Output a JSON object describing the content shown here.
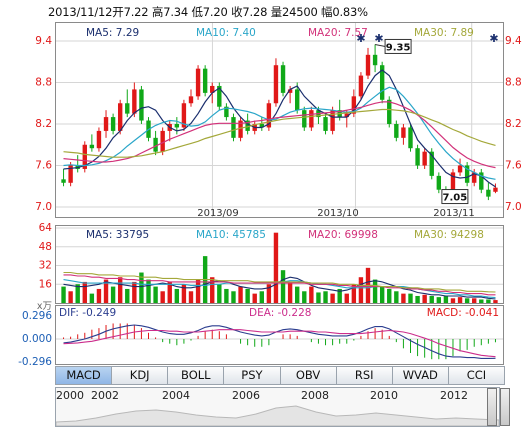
{
  "header": {
    "date": "2013/11/12",
    "open_label": "开",
    "open": "7.22",
    "high_label": "高",
    "high": "7.34",
    "low_label": "低",
    "low": "7.20",
    "close_label": "收",
    "close": "7.28",
    "volume_label": "量",
    "volume": "24500",
    "change_label": "幅",
    "change": "0.83%"
  },
  "price_panel": {
    "legend": [
      {
        "label": "MA5: 7.29",
        "color": "#1b2f6e"
      },
      {
        "label": "MA10: 7.40",
        "color": "#2aa6c9"
      },
      {
        "label": "MA20: 7.57",
        "color": "#d2327a"
      },
      {
        "label": "MA30: 7.89",
        "color": "#a4a83a"
      }
    ],
    "y_ticks": [
      "9.4",
      "8.8",
      "8.2",
      "7.6",
      "7.0"
    ],
    "x_ticks": [
      "2013/09",
      "2013/10",
      "2013/11"
    ],
    "max_label": "9.35",
    "min_label": "7.05"
  },
  "volume_panel": {
    "legend": [
      {
        "label": "MA5: 33795",
        "color": "#1b2f6e"
      },
      {
        "label": "MA10: 45785",
        "color": "#2aa6c9"
      },
      {
        "label": "MA20: 69998",
        "color": "#d2327a"
      },
      {
        "label": "MA30: 94298",
        "color": "#a4a83a"
      }
    ],
    "y_ticks": [
      "64",
      "48",
      "32",
      "16"
    ],
    "unit": "x万"
  },
  "macd_panel": {
    "dif_label": "DIF: -0.249",
    "dea_label": "DEA: -0.228",
    "macd_label": "MACD: -0.041",
    "y_ticks": [
      "0.296",
      "0.000",
      "-0.296"
    ]
  },
  "tabs": [
    "MACD",
    "KDJ",
    "BOLL",
    "PSY",
    "OBV",
    "RSI",
    "WVAD",
    "CCI"
  ],
  "active_tab": "MACD",
  "timeline_years": [
    "2000",
    "2002",
    "2004",
    "2006",
    "2008",
    "2010",
    "2012"
  ],
  "colors": {
    "up": "#e01818",
    "down": "#10a818",
    "grid": "#d6d6d6",
    "dif": "#2b3d8f",
    "dea": "#cc2d8c"
  },
  "chart_data": [
    {
      "type": "candlestick",
      "title": "",
      "ylim": [
        7.0,
        9.4
      ],
      "x_ticks": [
        "2013/09",
        "2013/10",
        "2013/11"
      ],
      "candles": [
        [
          7.4,
          7.55,
          7.3,
          7.35
        ],
        [
          7.35,
          7.65,
          7.3,
          7.6
        ],
        [
          7.6,
          7.75,
          7.5,
          7.55
        ],
        [
          7.55,
          7.95,
          7.5,
          7.9
        ],
        [
          7.9,
          8.05,
          7.8,
          7.85
        ],
        [
          7.85,
          8.15,
          7.8,
          8.1
        ],
        [
          8.1,
          8.4,
          8.0,
          8.3
        ],
        [
          8.3,
          8.35,
          8.05,
          8.1
        ],
        [
          8.1,
          8.55,
          8.05,
          8.5
        ],
        [
          8.5,
          8.7,
          8.3,
          8.35
        ],
        [
          8.35,
          8.8,
          8.3,
          8.7
        ],
        [
          8.7,
          8.75,
          8.2,
          8.25
        ],
        [
          8.25,
          8.3,
          7.95,
          8.0
        ],
        [
          8.0,
          8.1,
          7.75,
          7.8
        ],
        [
          7.8,
          8.15,
          7.75,
          8.1
        ],
        [
          8.1,
          8.25,
          7.95,
          8.2
        ],
        [
          8.2,
          8.3,
          8.05,
          8.15
        ],
        [
          8.15,
          8.55,
          8.1,
          8.5
        ],
        [
          8.5,
          8.7,
          8.45,
          8.6
        ],
        [
          8.6,
          9.05,
          8.55,
          9.0
        ],
        [
          9.0,
          9.05,
          8.6,
          8.65
        ],
        [
          8.65,
          8.8,
          8.5,
          8.75
        ],
        [
          8.75,
          8.8,
          8.4,
          8.45
        ],
        [
          8.45,
          8.5,
          8.25,
          8.3
        ],
        [
          8.3,
          8.35,
          7.95,
          8.0
        ],
        [
          8.0,
          8.3,
          7.95,
          8.25
        ],
        [
          8.25,
          8.35,
          8.05,
          8.1
        ],
        [
          8.1,
          8.25,
          8.05,
          8.2
        ],
        [
          8.2,
          8.3,
          8.1,
          8.15
        ],
        [
          8.15,
          8.55,
          8.1,
          8.5
        ],
        [
          8.5,
          9.15,
          8.45,
          9.05
        ],
        [
          9.05,
          9.1,
          8.6,
          8.65
        ],
        [
          8.65,
          8.75,
          8.5,
          8.7
        ],
        [
          8.7,
          8.8,
          8.35,
          8.4
        ],
        [
          8.4,
          8.45,
          8.1,
          8.15
        ],
        [
          8.15,
          8.45,
          8.1,
          8.4
        ],
        [
          8.4,
          8.45,
          8.2,
          8.3
        ],
        [
          8.3,
          8.35,
          8.05,
          8.1
        ],
        [
          8.1,
          8.45,
          8.05,
          8.4
        ],
        [
          8.4,
          8.55,
          8.25,
          8.3
        ],
        [
          8.3,
          8.4,
          8.15,
          8.35
        ],
        [
          8.35,
          8.7,
          8.3,
          8.6
        ],
        [
          8.6,
          8.95,
          8.55,
          8.9
        ],
        [
          8.9,
          9.3,
          8.85,
          9.2
        ],
        [
          9.2,
          9.35,
          8.95,
          9.05
        ],
        [
          9.05,
          9.1,
          8.5,
          8.55
        ],
        [
          8.55,
          8.6,
          8.15,
          8.2
        ],
        [
          8.2,
          8.25,
          7.95,
          8.0
        ],
        [
          8.0,
          8.2,
          7.9,
          8.15
        ],
        [
          8.15,
          8.2,
          7.8,
          7.85
        ],
        [
          7.85,
          7.9,
          7.55,
          7.6
        ],
        [
          7.6,
          7.85,
          7.55,
          7.8
        ],
        [
          7.8,
          7.85,
          7.4,
          7.45
        ],
        [
          7.45,
          7.5,
          7.2,
          7.25
        ],
        [
          7.25,
          7.3,
          7.05,
          7.15
        ],
        [
          7.15,
          7.55,
          7.1,
          7.5
        ],
        [
          7.5,
          7.7,
          7.45,
          7.6
        ],
        [
          7.6,
          7.65,
          7.3,
          7.35
        ],
        [
          7.35,
          7.55,
          7.3,
          7.5
        ],
        [
          7.5,
          7.55,
          7.2,
          7.25
        ],
        [
          7.25,
          7.35,
          7.1,
          7.15
        ],
        [
          7.22,
          7.34,
          7.2,
          7.28
        ]
      ],
      "series": [
        {
          "name": "MA5",
          "values": [
            7.55,
            7.56,
            7.57,
            7.6,
            7.65,
            7.73,
            7.85,
            8.0,
            8.1,
            8.25,
            8.36,
            8.43,
            8.45,
            8.4,
            8.25,
            8.15,
            8.1,
            8.12,
            8.21,
            8.35,
            8.52,
            8.65,
            8.72,
            8.6,
            8.43,
            8.3,
            8.2,
            8.15,
            8.15,
            8.2,
            8.35,
            8.55,
            8.7,
            8.75,
            8.6,
            8.5,
            8.4,
            8.35,
            8.3,
            8.3,
            8.3,
            8.4,
            8.55,
            8.75,
            8.9,
            8.98,
            8.9,
            8.7,
            8.45,
            8.2,
            7.97,
            7.85,
            7.75,
            7.62,
            7.5,
            7.44,
            7.42,
            7.43,
            7.48,
            7.45,
            7.36,
            7.29
          ]
        },
        {
          "name": "MA10",
          "values": [
            7.6,
            7.61,
            7.6,
            7.6,
            7.61,
            7.63,
            7.67,
            7.72,
            7.79,
            7.88,
            7.96,
            8.04,
            8.12,
            8.18,
            8.22,
            8.25,
            8.24,
            8.2,
            8.17,
            8.18,
            8.23,
            8.32,
            8.4,
            8.43,
            8.42,
            8.4,
            8.38,
            8.35,
            8.3,
            8.26,
            8.27,
            8.32,
            8.37,
            8.4,
            8.42,
            8.43,
            8.42,
            8.41,
            8.4,
            8.38,
            8.37,
            8.38,
            8.43,
            8.52,
            8.6,
            8.68,
            8.73,
            8.7,
            8.6,
            8.48,
            8.35,
            8.2,
            8.05,
            7.92,
            7.8,
            7.7,
            7.62,
            7.55,
            7.5,
            7.45,
            7.42,
            7.4
          ]
        },
        {
          "name": "MA20",
          "values": [
            7.7,
            7.69,
            7.68,
            7.67,
            7.66,
            7.65,
            7.65,
            7.66,
            7.68,
            7.7,
            7.73,
            7.78,
            7.83,
            7.88,
            7.93,
            7.98,
            8.02,
            8.06,
            8.1,
            8.14,
            8.18,
            8.2,
            8.21,
            8.21,
            8.21,
            8.21,
            8.22,
            8.24,
            8.25,
            8.27,
            8.29,
            8.3,
            8.31,
            8.32,
            8.33,
            8.34,
            8.35,
            8.36,
            8.37,
            8.38,
            8.4,
            8.42,
            8.44,
            8.47,
            8.5,
            8.52,
            8.52,
            8.49,
            8.45,
            8.4,
            8.33,
            8.25,
            8.16,
            8.06,
            7.96,
            7.86,
            7.78,
            7.71,
            7.66,
            7.62,
            7.59,
            7.57
          ]
        },
        {
          "name": "MA30",
          "values": [
            7.8,
            7.79,
            7.78,
            7.76,
            7.75,
            7.74,
            7.73,
            7.72,
            7.72,
            7.72,
            7.73,
            7.74,
            7.76,
            7.78,
            7.8,
            7.83,
            7.86,
            7.89,
            7.92,
            7.95,
            7.99,
            8.02,
            8.05,
            8.08,
            8.11,
            8.14,
            8.16,
            8.19,
            8.21,
            8.23,
            8.25,
            8.27,
            8.28,
            8.29,
            8.3,
            8.31,
            8.32,
            8.33,
            8.34,
            8.35,
            8.36,
            8.37,
            8.38,
            8.39,
            8.4,
            8.41,
            8.41,
            8.4,
            8.39,
            8.37,
            8.34,
            8.3,
            8.26,
            8.22,
            8.17,
            8.12,
            8.08,
            8.03,
            7.99,
            7.95,
            7.92,
            7.89
          ]
        }
      ],
      "annotations": [
        {
          "text": "9.35",
          "type": "max"
        },
        {
          "text": "7.05",
          "type": "min"
        }
      ]
    },
    {
      "type": "bar",
      "title": "",
      "ylabel": "x万",
      "ylim": [
        0,
        64
      ],
      "values": [
        14,
        10,
        16,
        18,
        8,
        12,
        20,
        14,
        22,
        12,
        18,
        26,
        20,
        14,
        10,
        18,
        12,
        16,
        10,
        20,
        40,
        22,
        16,
        12,
        10,
        14,
        12,
        8,
        10,
        16,
        60,
        28,
        18,
        14,
        10,
        14,
        9,
        10,
        8,
        12,
        8,
        16,
        22,
        30,
        20,
        14,
        12,
        10,
        8,
        8,
        6,
        7,
        6,
        5,
        6,
        4,
        5,
        4,
        4,
        3,
        3,
        2.5
      ],
      "series": [
        {
          "name": "MA5",
          "values": [
            16,
            15,
            14,
            14,
            15,
            16,
            18,
            17,
            16,
            15,
            14,
            14,
            15,
            16,
            17,
            16,
            14,
            13,
            13,
            14,
            16,
            18,
            19,
            18,
            16,
            14,
            13,
            12,
            12,
            13,
            16,
            20,
            22,
            21,
            18,
            15,
            13,
            12,
            11,
            10,
            11,
            13,
            16,
            18,
            19,
            18,
            16,
            14,
            12,
            11,
            9,
            8,
            7,
            7,
            6,
            6,
            6,
            5,
            5,
            5,
            4,
            3.4
          ]
        },
        {
          "name": "MA10",
          "values": [
            20,
            19,
            18,
            17,
            17,
            17,
            17,
            17,
            17,
            17,
            17,
            16,
            16,
            16,
            16,
            16,
            16,
            16,
            15,
            15,
            15,
            16,
            16,
            17,
            17,
            17,
            17,
            17,
            17,
            17,
            18,
            18,
            19,
            19,
            18,
            17,
            16,
            16,
            15,
            14,
            13,
            13,
            13,
            13,
            14,
            14,
            14,
            14,
            14,
            13,
            12,
            11,
            10,
            9,
            8,
            8,
            7,
            7,
            6,
            6,
            5,
            4.6
          ]
        },
        {
          "name": "MA20",
          "values": [
            24,
            24,
            23,
            23,
            22,
            22,
            21,
            21,
            21,
            20,
            20,
            19,
            19,
            19,
            19,
            18,
            18,
            18,
            18,
            18,
            18,
            18,
            18,
            18,
            17,
            17,
            17,
            17,
            17,
            17,
            17,
            17,
            17,
            17,
            17,
            16,
            16,
            16,
            16,
            15,
            15,
            14,
            14,
            14,
            14,
            14,
            13,
            13,
            13,
            12,
            12,
            11,
            11,
            10,
            10,
            9,
            9,
            8,
            8,
            8,
            7,
            7
          ]
        },
        {
          "name": "MA30",
          "values": [
            26,
            26,
            25,
            25,
            25,
            24,
            24,
            24,
            23,
            23,
            23,
            22,
            22,
            22,
            21,
            21,
            21,
            20,
            20,
            20,
            20,
            20,
            19,
            19,
            19,
            19,
            19,
            18,
            18,
            18,
            18,
            18,
            18,
            18,
            18,
            17,
            17,
            17,
            17,
            16,
            16,
            16,
            15,
            15,
            15,
            14,
            14,
            14,
            13,
            13,
            13,
            12,
            12,
            12,
            11,
            11,
            11,
            10,
            10,
            10,
            9.6,
            9.4
          ]
        }
      ]
    },
    {
      "type": "line",
      "title": "",
      "ylim": [
        -0.296,
        0.296
      ],
      "series": [
        {
          "name": "DIF",
          "values": [
            -0.05,
            -0.04,
            -0.02,
            0.0,
            0.03,
            0.06,
            0.1,
            0.13,
            0.15,
            0.17,
            0.18,
            0.17,
            0.15,
            0.12,
            0.09,
            0.07,
            0.06,
            0.06,
            0.08,
            0.11,
            0.15,
            0.17,
            0.17,
            0.15,
            0.12,
            0.09,
            0.07,
            0.05,
            0.04,
            0.05,
            0.09,
            0.12,
            0.13,
            0.12,
            0.1,
            0.08,
            0.06,
            0.05,
            0.04,
            0.04,
            0.04,
            0.06,
            0.09,
            0.13,
            0.16,
            0.16,
            0.13,
            0.08,
            0.03,
            -0.02,
            -0.07,
            -0.11,
            -0.15,
            -0.19,
            -0.22,
            -0.23,
            -0.23,
            -0.24,
            -0.24,
            -0.25,
            -0.25,
            -0.249
          ]
        },
        {
          "name": "DEA",
          "values": [
            -0.06,
            -0.055,
            -0.05,
            -0.04,
            -0.03,
            -0.01,
            0.01,
            0.03,
            0.05,
            0.07,
            0.09,
            0.1,
            0.11,
            0.11,
            0.11,
            0.1,
            0.1,
            0.09,
            0.09,
            0.09,
            0.1,
            0.11,
            0.12,
            0.12,
            0.12,
            0.12,
            0.11,
            0.1,
            0.09,
            0.09,
            0.09,
            0.09,
            0.1,
            0.1,
            0.1,
            0.1,
            0.09,
            0.09,
            0.08,
            0.07,
            0.07,
            0.07,
            0.07,
            0.08,
            0.09,
            0.1,
            0.11,
            0.1,
            0.09,
            0.07,
            0.04,
            0.01,
            -0.02,
            -0.06,
            -0.09,
            -0.12,
            -0.15,
            -0.17,
            -0.19,
            -0.21,
            -0.22,
            -0.228
          ]
        }
      ],
      "macd_label_value": -0.041
    }
  ]
}
